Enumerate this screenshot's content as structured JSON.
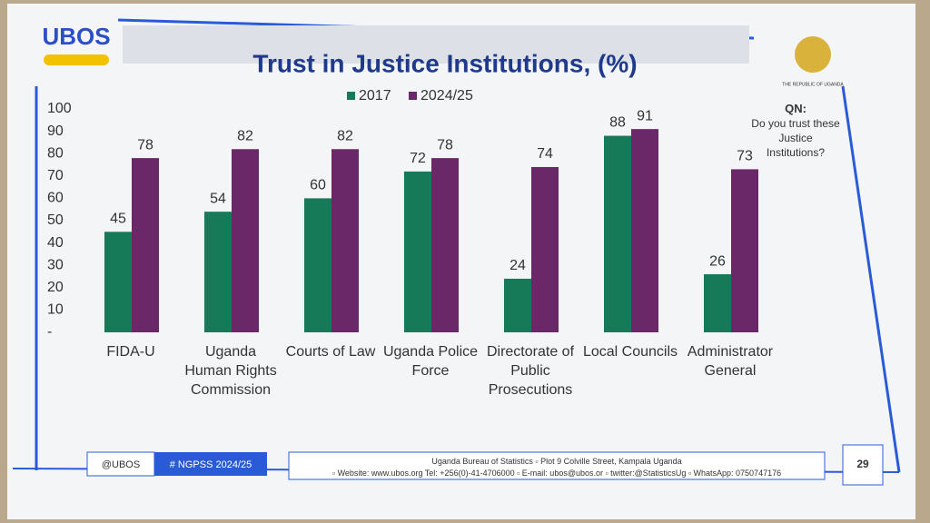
{
  "logo": "UBOS",
  "republic": "THE REPUBLIC OF UGANDA",
  "question": {
    "label": "QN:",
    "text": "Do you trust these Justice Institutions?"
  },
  "footer": {
    "handle": "@UBOS",
    "hashtag": "# NGPSS 2024/25",
    "address": "Uganda Bureau of Statistics ▫ Plot 9 Colville Street, Kampala Uganda",
    "contacts": "▫ Website: www.ubos.org Tel: +256(0)-41-4706000 ▫ E-mail: ubos@ubos.or ▫ twitter:@StatisticsUg ▫ WhatsApp: 0750747176",
    "page": "29"
  },
  "chart_data": {
    "type": "bar",
    "title": "Trust in Justice Institutions, (%)",
    "categories": [
      "FIDA-U",
      "Uganda Human Rights Commission",
      "Courts of Law",
      "Uganda Police Force",
      "Directorate of Public Prosecutions",
      "Local Councils",
      "Administrator General"
    ],
    "series": [
      {
        "name": "2017",
        "color": "#167a58",
        "values": [
          45,
          54,
          60,
          72,
          24,
          88,
          26
        ]
      },
      {
        "name": "2024/25",
        "color": "#6a2868",
        "values": [
          78,
          82,
          82,
          78,
          74,
          91,
          73
        ]
      }
    ],
    "ylim": [
      0,
      100
    ],
    "yticks": [
      {
        "value": 0,
        "label": "-"
      },
      10,
      20,
      30,
      40,
      50,
      60,
      70,
      80,
      90,
      100
    ],
    "grid": false
  }
}
